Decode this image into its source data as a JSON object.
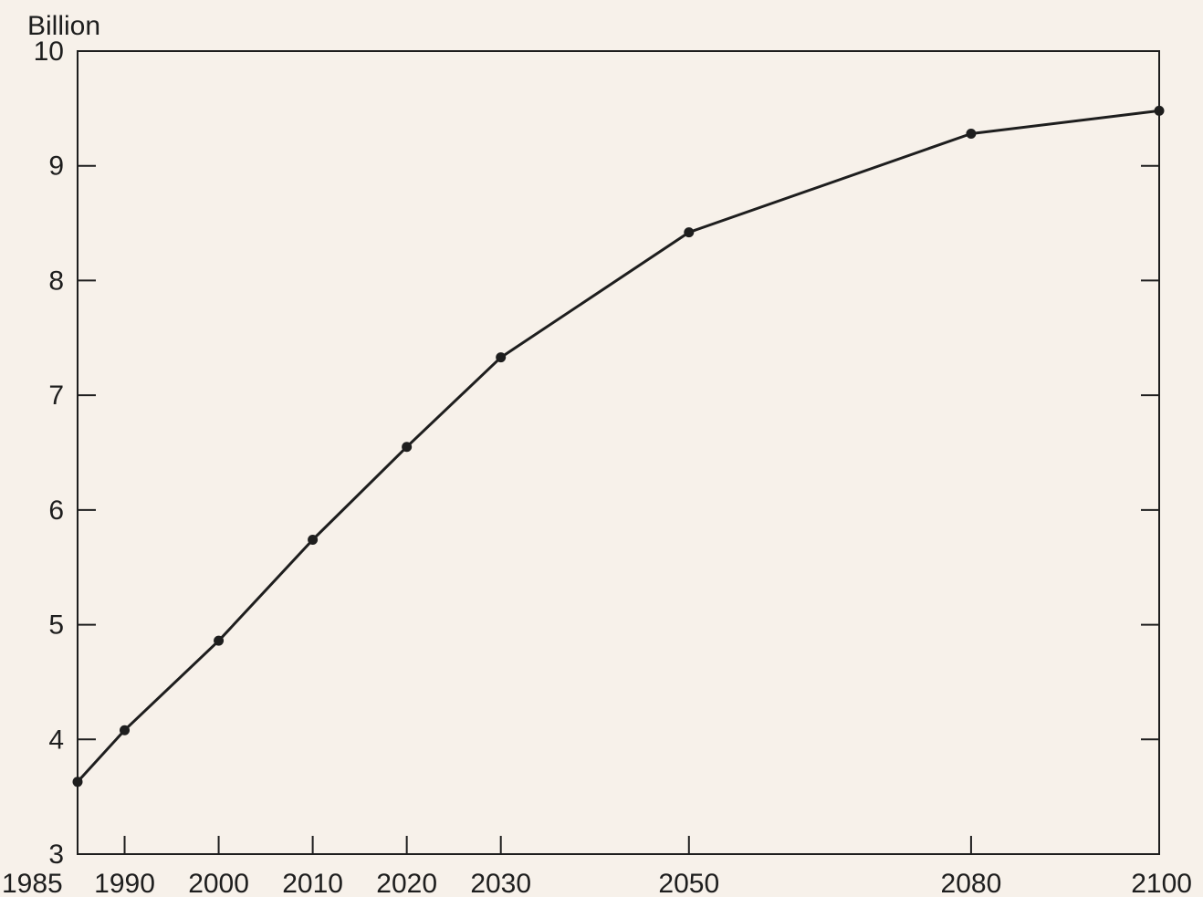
{
  "chart_data": {
    "type": "line",
    "title": "",
    "xlabel": "",
    "ylabel": "Billion",
    "x": [
      1985,
      1990,
      2000,
      2010,
      2020,
      2030,
      2050,
      2080,
      2100
    ],
    "x_tick_labels": [
      "1985",
      "1990",
      "2000",
      "2010",
      "2020",
      "2030",
      "2050",
      "2080",
      "2100"
    ],
    "y_ticks": [
      3,
      4,
      5,
      6,
      7,
      8,
      9,
      10
    ],
    "y_tick_labels": [
      "3",
      "4",
      "5",
      "6",
      "7",
      "8",
      "9",
      "10"
    ],
    "series": [
      {
        "values": [
          3.63,
          4.08,
          4.86,
          5.74,
          6.55,
          7.33,
          8.42,
          9.28,
          9.48
        ]
      }
    ],
    "xlim": [
      1985,
      2100
    ],
    "ylim": [
      3,
      10
    ],
    "grid": false,
    "legend": "none",
    "colors": {
      "background": "#f7f1ea",
      "ink": "#1e1e1e"
    }
  }
}
